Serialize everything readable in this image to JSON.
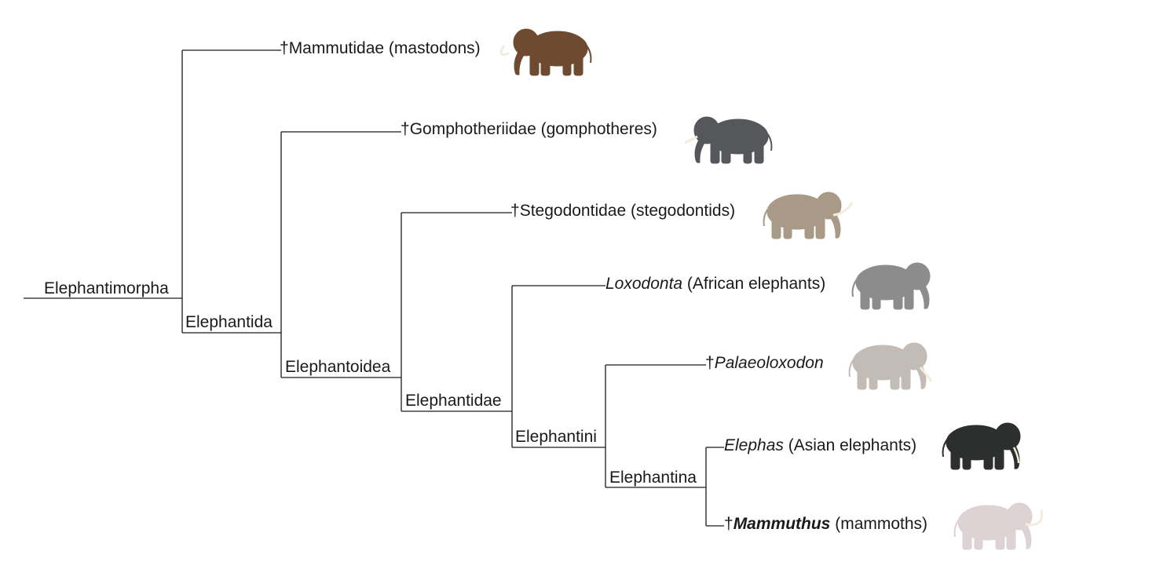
{
  "nodes": {
    "elephantimorpha": "Elephantimorpha",
    "elephantida": "Elephantida",
    "elephantoidea": "Elephantoidea",
    "elephantidae": "Elephantidae",
    "elephantini": "Elephantini",
    "elephantina": "Elephantina"
  },
  "taxa": {
    "mammutidae": {
      "dagger": "†",
      "name": "Mammutidae",
      "common": " (mastodons)"
    },
    "gomphotheriidae": {
      "dagger": "†",
      "name": "Gomphotheriidae",
      "common": " (gomphotheres)"
    },
    "stegodontidae": {
      "dagger": "†",
      "name": "Stegodontidae",
      "common": " (stegodontids)"
    },
    "loxodonta": {
      "dagger": "",
      "name": "Loxodonta",
      "common": " (African elephants)"
    },
    "palaeoloxodon": {
      "dagger": "†",
      "name": "Palaeoloxodon",
      "common": ""
    },
    "elephas": {
      "dagger": "",
      "name": "Elephas",
      "common": " (Asian elephants)"
    },
    "mammuthus": {
      "dagger": "†",
      "name": "Mammuthus",
      "common": " (mammoths)"
    }
  },
  "colors": {
    "mastodon": "#6e4a30",
    "gomphothere": "#55575a",
    "stegodon": "#a89a86",
    "loxodonta": "#8c8c8c",
    "palaeoloxodon": "#c3bbb5",
    "elephas": "#2d2f2e",
    "mammoth": "#ddd2d4",
    "tusk": "#f2ecdc"
  }
}
